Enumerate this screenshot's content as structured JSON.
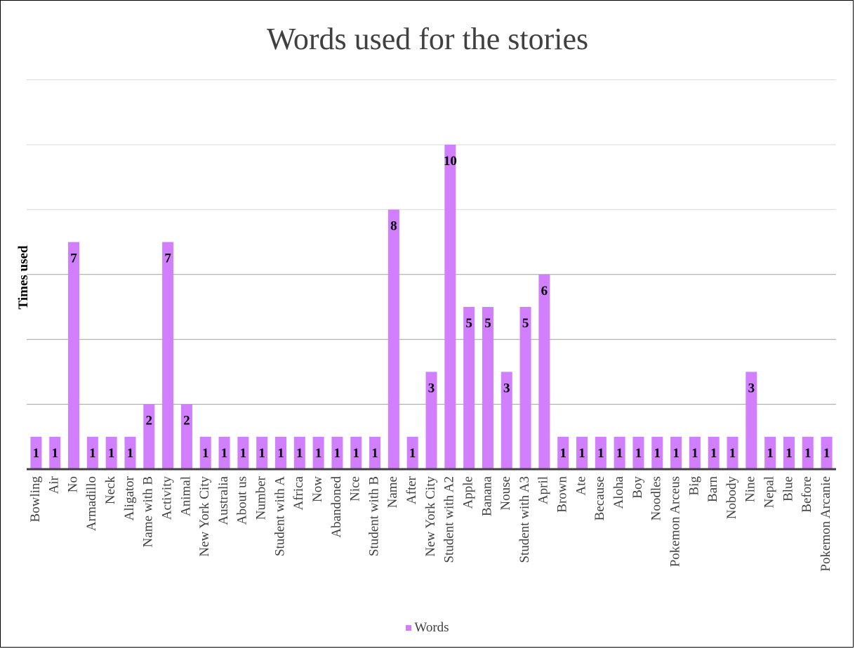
{
  "chart_data": {
    "type": "bar",
    "title": "Words used for the stories",
    "xlabel": "",
    "ylabel": "Times used",
    "ylim": [
      0,
      12
    ],
    "grid": true,
    "legend_position": "bottom",
    "bar_color": "#d17fff",
    "categories": [
      "Bowling",
      "Air",
      "No",
      "Armadillo",
      "Neck",
      "Aligator",
      "Name with B",
      "Activity",
      "Animal",
      "New York City",
      "Australia",
      "About us",
      "Number",
      "Student with A",
      "Africa",
      "Now",
      "Abandoned",
      "Nice",
      "Student with B",
      "Name",
      "After",
      "New York City",
      "Student with A2",
      "Apple",
      "Banana",
      "Nouse",
      "Student with A3",
      "April",
      "Brown",
      "Ate",
      "Because",
      "Aloha",
      "Boy",
      "Noodles",
      "Pokemon Arceus",
      "Big",
      "Barn",
      "Nobody",
      "Nine",
      "Nepal",
      "Blue",
      "Before",
      "Pokemon Arcanie"
    ],
    "series": [
      {
        "name": "Words",
        "values": [
          1,
          1,
          7,
          1,
          1,
          1,
          2,
          7,
          2,
          1,
          1,
          1,
          1,
          1,
          1,
          1,
          1,
          1,
          1,
          8,
          1,
          3,
          10,
          5,
          5,
          3,
          5,
          6,
          1,
          1,
          1,
          1,
          1,
          1,
          1,
          1,
          1,
          1,
          3,
          1,
          1,
          1,
          1
        ]
      }
    ]
  }
}
